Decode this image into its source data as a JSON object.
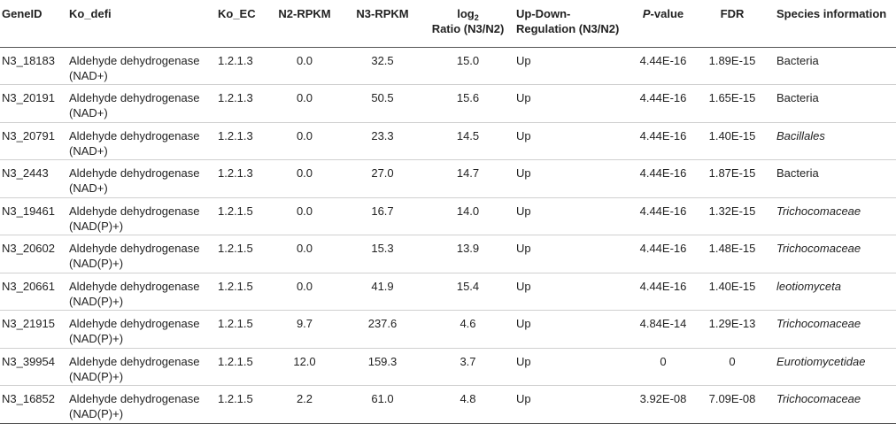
{
  "table": {
    "headers": {
      "gene_id": "GeneID",
      "ko_defi": "Ko_defi",
      "ko_ec": "Ko_EC",
      "n2_rpkm": "N2-RPKM",
      "n3_rpkm": "N3-RPKM",
      "log2_prefix": "log",
      "log2_sub": "2",
      "log2_line2": "Ratio (N3/N2)",
      "updown_line1": "Up-Down-",
      "updown_line2": "Regulation (N3/N2)",
      "pvalue_p": "P",
      "pvalue_rest": "-value",
      "fdr": "FDR",
      "species": "Species information"
    },
    "rows": [
      {
        "gene_id": "N3_18183",
        "ko_defi_1": "Aldehyde dehydrogenase",
        "ko_defi_2": "(NAD+)",
        "ko_ec": "1.2.1.3",
        "n2": "0.0",
        "n3": "32.5",
        "log2": "15.0",
        "updown": "Up",
        "pvalue": "4.44E-16",
        "fdr": "1.89E-15",
        "species": "Bacteria",
        "species_italic": false
      },
      {
        "gene_id": "N3_20191",
        "ko_defi_1": "Aldehyde dehydrogenase",
        "ko_defi_2": "(NAD+)",
        "ko_ec": "1.2.1.3",
        "n2": "0.0",
        "n3": "50.5",
        "log2": "15.6",
        "updown": "Up",
        "pvalue": "4.44E-16",
        "fdr": "1.65E-15",
        "species": "Bacteria",
        "species_italic": false
      },
      {
        "gene_id": "N3_20791",
        "ko_defi_1": "Aldehyde dehydrogenase",
        "ko_defi_2": "(NAD+)",
        "ko_ec": "1.2.1.3",
        "n2": "0.0",
        "n3": "23.3",
        "log2": "14.5",
        "updown": "Up",
        "pvalue": "4.44E-16",
        "fdr": "1.40E-15",
        "species": "Bacillales",
        "species_italic": true
      },
      {
        "gene_id": "N3_2443",
        "ko_defi_1": "Aldehyde dehydrogenase",
        "ko_defi_2": "(NAD+)",
        "ko_ec": "1.2.1.3",
        "n2": "0.0",
        "n3": "27.0",
        "log2": "14.7",
        "updown": "Up",
        "pvalue": "4.44E-16",
        "fdr": "1.87E-15",
        "species": "Bacteria",
        "species_italic": false
      },
      {
        "gene_id": "N3_19461",
        "ko_defi_1": "Aldehyde dehydrogenase",
        "ko_defi_2": "(NAD(P)+)",
        "ko_ec": "1.2.1.5",
        "n2": "0.0",
        "n3": "16.7",
        "log2": "14.0",
        "updown": "Up",
        "pvalue": "4.44E-16",
        "fdr": "1.32E-15",
        "species": "Trichocomaceae",
        "species_italic": true
      },
      {
        "gene_id": "N3_20602",
        "ko_defi_1": "Aldehyde dehydrogenase",
        "ko_defi_2": "(NAD(P)+)",
        "ko_ec": "1.2.1.5",
        "n2": "0.0",
        "n3": "15.3",
        "log2": "13.9",
        "updown": "Up",
        "pvalue": "4.44E-16",
        "fdr": "1.48E-15",
        "species": "Trichocomaceae",
        "species_italic": true
      },
      {
        "gene_id": "N3_20661",
        "ko_defi_1": "Aldehyde dehydrogenase",
        "ko_defi_2": "(NAD(P)+)",
        "ko_ec": "1.2.1.5",
        "n2": "0.0",
        "n3": "41.9",
        "log2": "15.4",
        "updown": "Up",
        "pvalue": "4.44E-16",
        "fdr": "1.40E-15",
        "species": "leotiomyceta",
        "species_italic": true
      },
      {
        "gene_id": "N3_21915",
        "ko_defi_1": "Aldehyde dehydrogenase",
        "ko_defi_2": "(NAD(P)+)",
        "ko_ec": "1.2.1.5",
        "n2": "9.7",
        "n3": "237.6",
        "log2": "4.6",
        "updown": "Up",
        "pvalue": "4.84E-14",
        "fdr": "1.29E-13",
        "species": "Trichocomaceae",
        "species_italic": true
      },
      {
        "gene_id": "N3_39954",
        "ko_defi_1": "Aldehyde dehydrogenase",
        "ko_defi_2": "(NAD(P)+)",
        "ko_ec": "1.2.1.5",
        "n2": "12.0",
        "n3": "159.3",
        "log2": "3.7",
        "updown": "Up",
        "pvalue": "0",
        "fdr": "0",
        "species": "Eurotiomycetidae",
        "species_italic": true
      },
      {
        "gene_id": "N3_16852",
        "ko_defi_1": "Aldehyde dehydrogenase",
        "ko_defi_2": "(NAD(P)+)",
        "ko_ec": "1.2.1.5",
        "n2": "2.2",
        "n3": "61.0",
        "log2": "4.8",
        "updown": "Up",
        "pvalue": "3.92E-08",
        "fdr": "7.09E-08",
        "species": "Trichocomaceae",
        "species_italic": true
      }
    ]
  }
}
